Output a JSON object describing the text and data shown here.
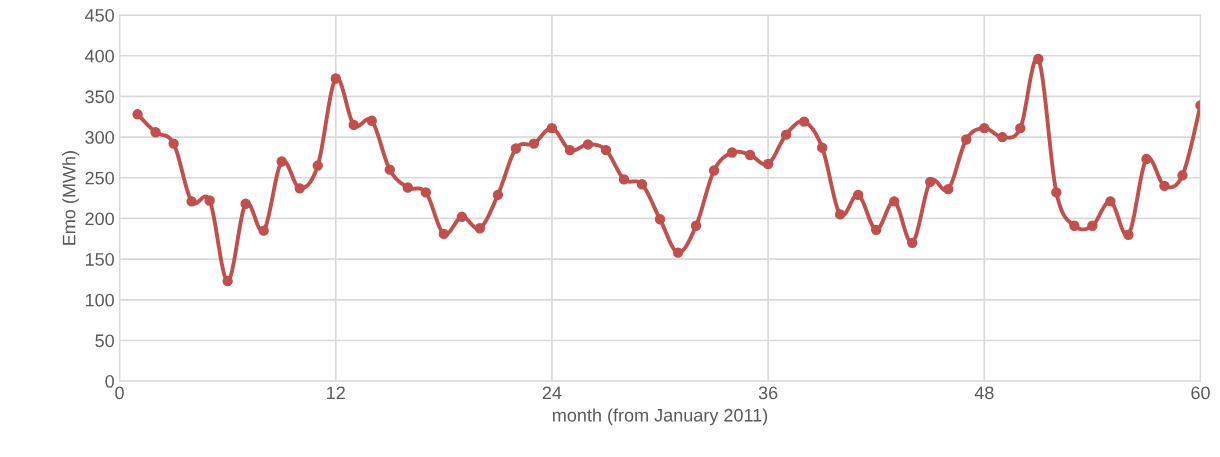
{
  "chart_data": {
    "type": "line",
    "xlabel": "month (from January 2011)",
    "ylabel": "Emo (MWh)",
    "x": [
      1,
      2,
      3,
      4,
      5,
      6,
      7,
      8,
      9,
      10,
      11,
      12,
      13,
      14,
      15,
      16,
      17,
      18,
      19,
      20,
      21,
      22,
      23,
      24,
      25,
      26,
      27,
      28,
      29,
      30,
      31,
      32,
      33,
      34,
      35,
      36,
      37,
      38,
      39,
      40,
      41,
      42,
      43,
      44,
      45,
      46,
      47,
      48,
      49,
      50,
      51,
      52,
      53,
      54,
      55,
      56,
      57,
      58,
      59,
      60
    ],
    "series": [
      {
        "color": "#c0504d",
        "values": [
          328,
          306,
          292,
          221,
          222,
          123,
          218,
          185,
          270,
          237,
          265,
          372,
          315,
          320,
          260,
          238,
          232,
          181,
          202,
          188,
          229,
          286,
          292,
          311,
          284,
          291,
          284,
          248,
          242,
          199,
          158,
          191,
          259,
          281,
          278,
          267,
          303,
          319,
          287,
          205,
          229,
          186,
          221,
          170,
          245,
          236,
          297,
          311,
          300,
          311,
          396,
          232,
          191,
          191,
          221,
          180,
          273,
          240,
          253,
          339
        ]
      }
    ],
    "xlim": [
      0,
      60
    ],
    "xticks": [
      0,
      12,
      24,
      36,
      48,
      60
    ],
    "ylim": [
      0,
      450
    ],
    "yticks": [
      0,
      50,
      100,
      150,
      200,
      250,
      300,
      350,
      400,
      450
    ],
    "grid": true,
    "marker": "circle",
    "line_style": "solid",
    "legend": false
  }
}
